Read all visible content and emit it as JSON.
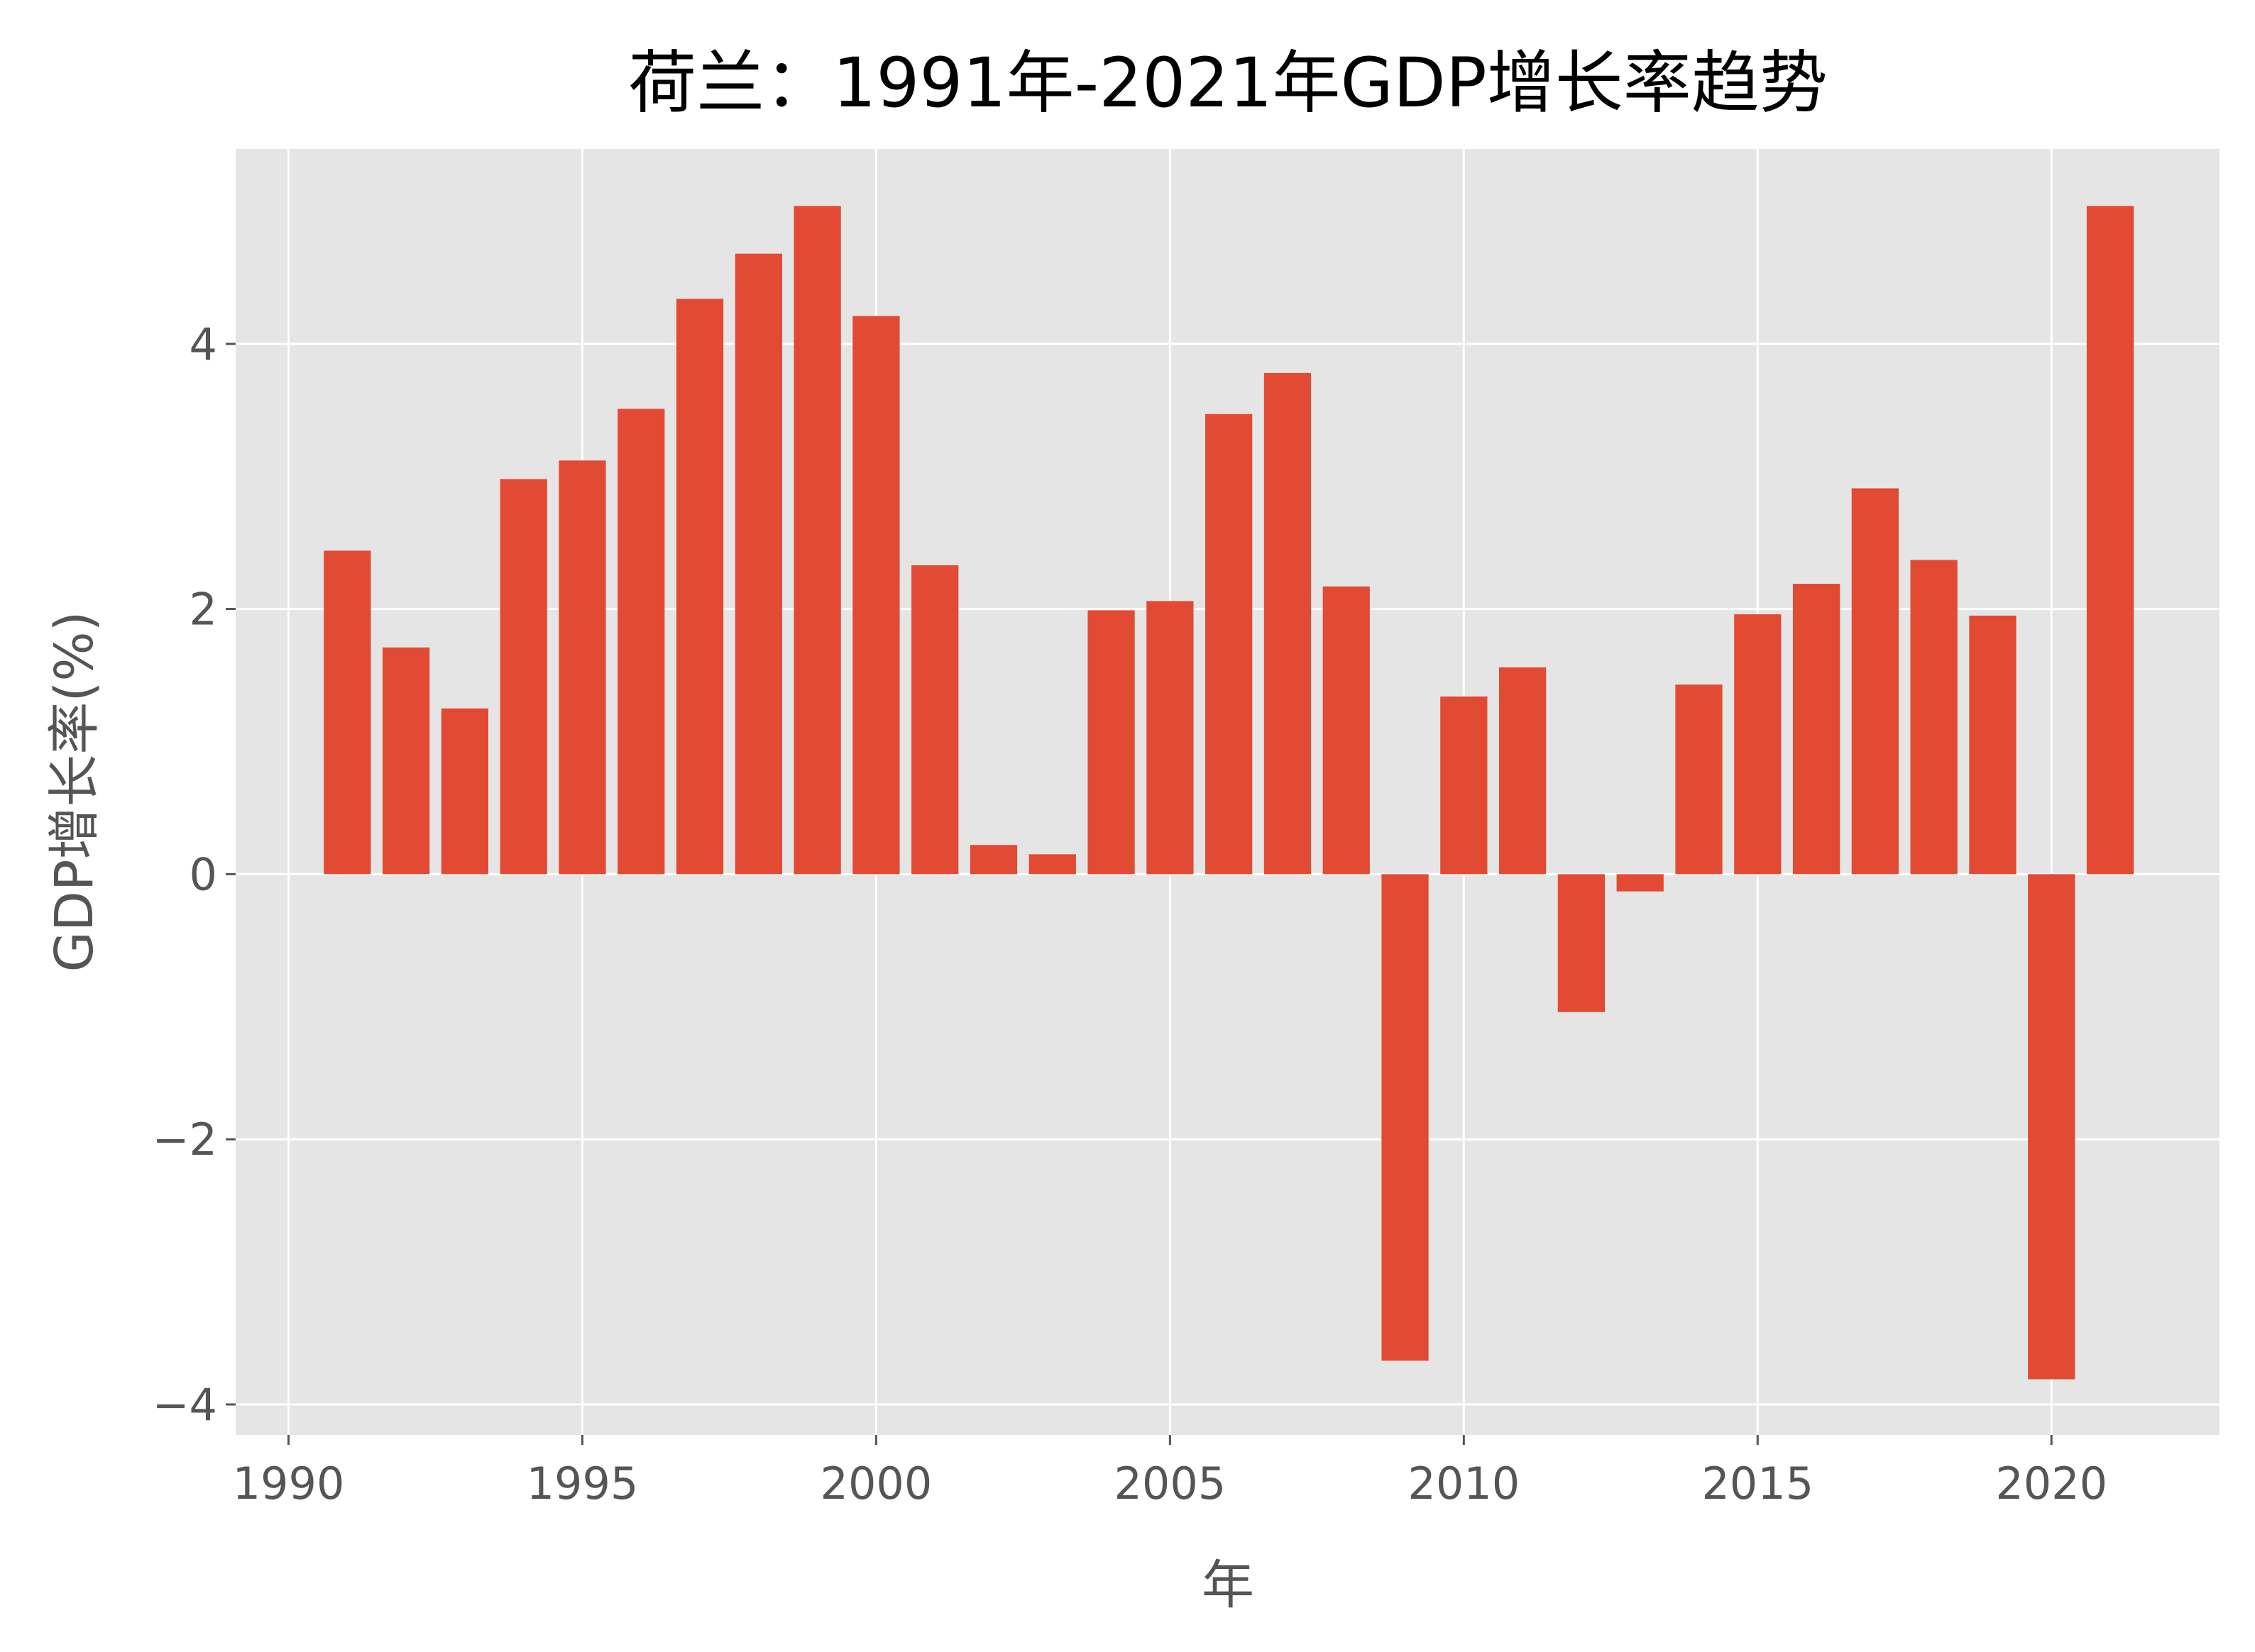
{
  "chart_data": {
    "type": "bar",
    "title": "荷兰：1991年-2021年GDP增长率趋势",
    "xlabel": "年",
    "ylabel": "GDP增长率(%)",
    "x": [
      1991,
      1992,
      1993,
      1994,
      1995,
      1996,
      1997,
      1998,
      1999,
      2000,
      2001,
      2002,
      2003,
      2004,
      2005,
      2006,
      2007,
      2008,
      2009,
      2010,
      2011,
      2012,
      2013,
      2014,
      2015,
      2016,
      2017,
      2018,
      2019,
      2020,
      2021
    ],
    "values": [
      2.44,
      1.71,
      1.25,
      2.98,
      3.12,
      3.51,
      4.34,
      4.68,
      5.04,
      4.21,
      2.33,
      0.22,
      0.15,
      1.99,
      2.06,
      3.47,
      3.78,
      2.17,
      -3.67,
      1.34,
      1.56,
      -1.04,
      -0.13,
      1.43,
      1.96,
      2.19,
      2.91,
      2.37,
      1.95,
      -3.81,
      5.04
    ],
    "xlim": [
      1989.1,
      2022.86
    ],
    "ylim": [
      -4.23,
      5.47
    ],
    "xticks": [
      1990,
      1995,
      2000,
      2005,
      2010,
      2015,
      2020
    ],
    "xtick_labels": [
      "1990",
      "1995",
      "2000",
      "2005",
      "2010",
      "2015",
      "2020"
    ],
    "yticks": [
      -4,
      -2,
      0,
      2,
      4
    ],
    "ytick_labels": [
      "−4",
      "−2",
      "0",
      "2",
      "4"
    ],
    "grid": true,
    "colors": {
      "bar": "#E24A33",
      "background": "#E5E5E5",
      "grid": "#FFFFFF",
      "tick_text": "#555555"
    }
  }
}
